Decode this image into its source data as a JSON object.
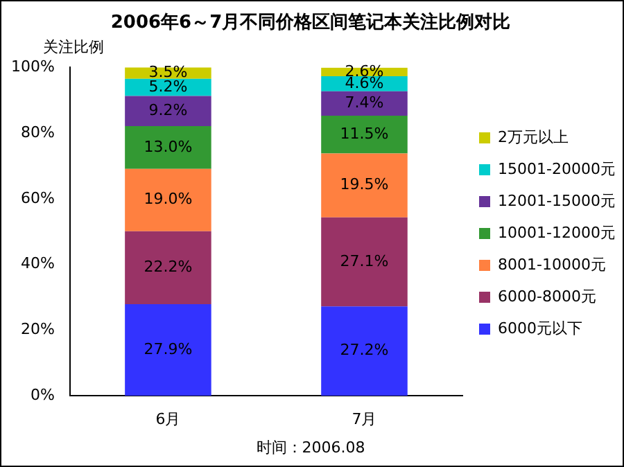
{
  "chart_data": {
    "type": "bar",
    "title": "2006年6～7月不同价格区间笔记本关注比例对比",
    "ylabel": "关注比例",
    "annotations": [
      "时间：2006.08"
    ],
    "categories": [
      "6月",
      "7月"
    ],
    "stacked": true,
    "legend": "right",
    "ylim": [
      0,
      100
    ],
    "yticks": [
      {
        "value": 0,
        "label": "0%"
      },
      {
        "value": 20,
        "label": "20%"
      },
      {
        "value": 40,
        "label": "40%"
      },
      {
        "value": 60,
        "label": "60%"
      },
      {
        "value": 80,
        "label": "80%"
      },
      {
        "value": 100,
        "label": "100%"
      }
    ],
    "series": [
      {
        "name": "6000元以下",
        "color": "#3333ff",
        "values": [
          27.9,
          27.2
        ],
        "value_labels": [
          "27.9%",
          "27.2%"
        ]
      },
      {
        "name": "6000-8000元",
        "color": "#993366",
        "values": [
          22.2,
          27.1
        ],
        "value_labels": [
          "22.2%",
          "27.1%"
        ]
      },
      {
        "name": "8001-10000元",
        "color": "#ff8040",
        "values": [
          19.0,
          19.5
        ],
        "value_labels": [
          "19.0%",
          "19.5%"
        ]
      },
      {
        "name": "10001-12000元",
        "color": "#339933",
        "values": [
          13.0,
          11.5
        ],
        "value_labels": [
          "13.0%",
          "11.5%"
        ]
      },
      {
        "name": "12001-15000元",
        "color": "#663399",
        "values": [
          9.2,
          7.4
        ],
        "value_labels": [
          "9.2%",
          "7.4%"
        ]
      },
      {
        "name": "15001-20000元",
        "color": "#00cccc",
        "values": [
          5.2,
          4.6
        ],
        "value_labels": [
          "5.2%",
          "4.6%"
        ]
      },
      {
        "name": "2万元以上",
        "color": "#cccc00",
        "values": [
          3.5,
          2.6
        ],
        "value_labels": [
          "3.5%",
          "2.6%"
        ]
      }
    ]
  }
}
